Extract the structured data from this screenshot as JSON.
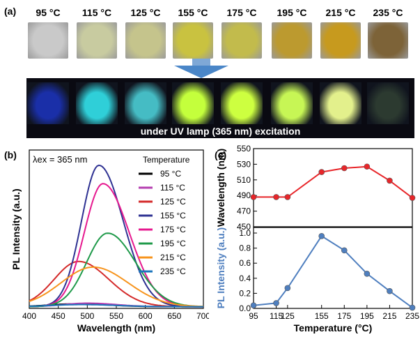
{
  "panel_a": {
    "label": "(a)",
    "temperatures": [
      "95 °C",
      "115 °C",
      "125 °C",
      "155 °C",
      "175 °C",
      "195 °C",
      "215 °C",
      "235 °C"
    ],
    "daylight_colors": [
      "#c9c9c9",
      "#c8cba0",
      "#c5c48c",
      "#c9c240",
      "#c2bb4c",
      "#bc9a2f",
      "#c79a1e",
      "#7d6338"
    ],
    "uv_colors": [
      "#1a2fa8",
      "#2fcfd8",
      "#45bcc4",
      "#c4ff3c",
      "#cdff40",
      "#c7f655",
      "#e3f08c",
      "#2c3a30"
    ],
    "caption": "under UV lamp (365 nm) excitation"
  },
  "panel_b": {
    "label": "(b)",
    "excitation_label": "λex = 365 nm",
    "legend_title": "Temperature"
  },
  "panel_c": {
    "label": "(c)"
  },
  "chart_data": [
    {
      "type": "line",
      "title": "",
      "xlabel": "Wavelength (nm)",
      "ylabel": "PL Intensity (a.u.)",
      "xlim": [
        400,
        700
      ],
      "ylim": [
        0,
        1.12
      ],
      "xticks": [
        400,
        450,
        500,
        550,
        600,
        650,
        700
      ],
      "legend_position": "top-right",
      "series": [
        {
          "name": "95 °C",
          "color": "#000000",
          "peak_nm": 480,
          "amplitude": 0.02,
          "sigma_left": 45,
          "sigma_right": 55
        },
        {
          "name": "115 °C",
          "color": "#b43fb0",
          "peak_nm": 500,
          "amplitude": 0.025,
          "sigma_left": 40,
          "sigma_right": 50
        },
        {
          "name": "125 °C",
          "color": "#d42a2a",
          "peak_nm": 485,
          "amplitude": 0.32,
          "sigma_left": 42,
          "sigma_right": 52
        },
        {
          "name": "155 °C",
          "color": "#2e3192",
          "peak_nm": 520,
          "amplitude": 1.0,
          "sigma_left": 30,
          "sigma_right": 42
        },
        {
          "name": "175 °C",
          "color": "#e6198f",
          "peak_nm": 527,
          "amplitude": 0.87,
          "sigma_left": 32,
          "sigma_right": 45
        },
        {
          "name": "195 °C",
          "color": "#1f9a4a",
          "peak_nm": 535,
          "amplitude": 0.52,
          "sigma_left": 36,
          "sigma_right": 48
        },
        {
          "name": "215 °C",
          "color": "#f7941d",
          "peak_nm": 510,
          "amplitude": 0.28,
          "sigma_left": 55,
          "sigma_right": 60
        },
        {
          "name": "235 °C",
          "color": "#1c75bc",
          "peak_nm": 490,
          "amplitude": 0.015,
          "sigma_left": 50,
          "sigma_right": 60
        }
      ]
    },
    {
      "type": "line",
      "xlabel": "Temperature (°C)",
      "ylabel": "Wavelength (nm)",
      "ylim": [
        450,
        550
      ],
      "yticks": [
        450,
        470,
        490,
        510,
        530,
        550
      ],
      "x": [
        95,
        115,
        125,
        155,
        175,
        195,
        215,
        235
      ],
      "series": [
        {
          "color": "#e8262a",
          "values": [
            488,
            488,
            488,
            520,
            525,
            527,
            509,
            487
          ]
        }
      ]
    },
    {
      "type": "line",
      "xlabel": "Temperature (°C)",
      "ylabel": "PL Intensity (a.u.)",
      "ylim": [
        0,
        1.0
      ],
      "yticks": [
        0.0,
        0.2,
        0.4,
        0.6,
        0.8,
        1.0
      ],
      "xticks": [
        95,
        115,
        125,
        155,
        175,
        195,
        215,
        235
      ],
      "x": [
        95,
        115,
        125,
        155,
        175,
        195,
        215,
        235
      ],
      "series": [
        {
          "color": "#4f7fbf",
          "values": [
            0.04,
            0.07,
            0.27,
            0.96,
            0.77,
            0.46,
            0.23,
            0.01
          ]
        }
      ]
    }
  ]
}
